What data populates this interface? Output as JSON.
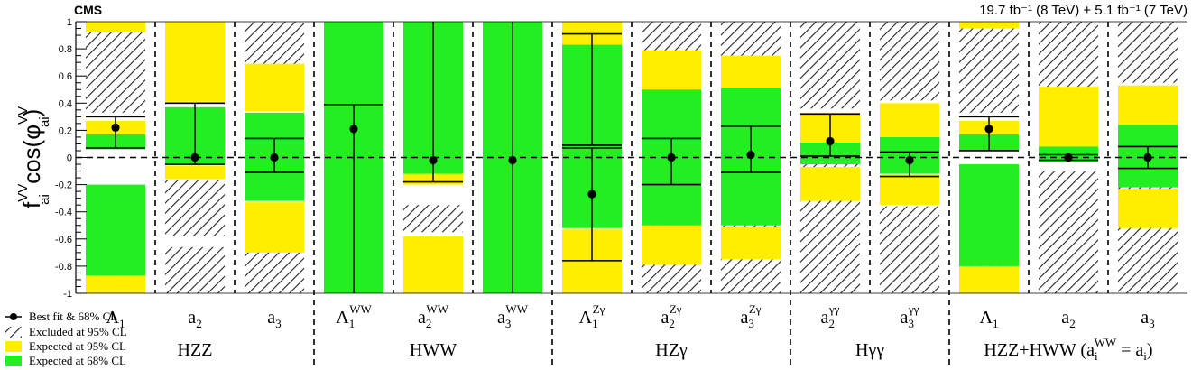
{
  "chart_data": {
    "type": "scatter",
    "experiment": "CMS",
    "lumi_label": "19.7 fb⁻¹ (8 TeV) + 5.1 fb⁻¹ (7 TeV)",
    "ylabel": "fᵥᵥ cos(φᵥᵥ)",
    "ylabel_parts": {
      "f": "f",
      "f_sup": "VV",
      "f_sub": "ai",
      "cos": "cos(φ",
      "phi_sup": "VV",
      "phi_sub": "ai",
      "close": ")"
    },
    "ylim": [
      -1,
      1
    ],
    "yticks": [
      "-1",
      "-0.8",
      "-0.6",
      "-0.4",
      "-0.2",
      "0",
      "0.2",
      "0.4",
      "0.6",
      "0.8",
      "1"
    ],
    "grid": false,
    "legend_position": "bottom-left",
    "legend": {
      "best_fit": "Best fit & 68% CL",
      "excluded": "Excluded at 95% CL",
      "expected95": "Expected at 95% CL",
      "expected68": "Expected at 68% CL"
    },
    "colors": {
      "expected95": "#ffee00",
      "expected68": "#22ee22",
      "hatch": "#222222",
      "marker": "#000000"
    },
    "groups": [
      {
        "label": "HZZ",
        "span": [
          0,
          3
        ]
      },
      {
        "label": "HWW",
        "span": [
          3,
          6
        ]
      },
      {
        "label": "HZγ",
        "span": [
          6,
          9
        ]
      },
      {
        "label": "Hγγ",
        "span": [
          9,
          11
        ]
      },
      {
        "label": "HZZ+HWW",
        "span": [
          11,
          14
        ],
        "suffix": {
          "open": "(a",
          "sub": "i",
          "sup": "WW",
          "mid": " = a",
          "sub2": "i",
          "close": ")"
        }
      }
    ],
    "categories": [
      {
        "base": "Λ",
        "sub": "1",
        "sup": "",
        "best": 0.22,
        "cl68": [
          [
            0.07,
            0.3
          ]
        ],
        "exp95": [
          [
            0.92,
            1.0
          ],
          [
            0.17,
            0.27
          ],
          [
            -0.87,
            -1.0
          ]
        ],
        "exp68": [
          [
            0.06,
            0.17
          ],
          [
            -0.2,
            -0.87
          ]
        ],
        "excluded": [
          [
            0.33,
            1.0
          ],
          [
            -0.25,
            -1.0
          ]
        ]
      },
      {
        "base": "a",
        "sub": "2",
        "sup": "",
        "best": 0.0,
        "cl68": [
          [
            -0.05,
            0.4
          ]
        ],
        "exp95": [
          [
            0.41,
            1.0
          ],
          [
            -0.06,
            -0.16
          ]
        ],
        "exp68": [
          [
            -0.05,
            0.37
          ]
        ],
        "excluded": [
          [
            -0.17,
            -0.58
          ],
          [
            -0.66,
            -1.0
          ]
        ]
      },
      {
        "base": "a",
        "sub": "3",
        "sup": "",
        "best": 0.0,
        "cl68": [
          [
            -0.11,
            0.14
          ]
        ],
        "exp95": [
          [
            0.34,
            0.69
          ],
          [
            -0.33,
            -0.7
          ]
        ],
        "exp68": [
          [
            -0.32,
            0.33
          ]
        ],
        "excluded": [
          [
            0.42,
            1.0
          ],
          [
            -0.4,
            -1.0
          ]
        ]
      },
      {
        "base": "Λ",
        "sub": "1",
        "sup": "WW",
        "best": 0.21,
        "cl68": [
          [
            -1.0,
            0.39
          ]
        ],
        "exp95": [
          [
            0.5,
            1.0
          ],
          [
            0.38,
            0.4
          ]
        ],
        "exp68": [
          [
            0.35,
            1.0
          ],
          [
            -1.0,
            0.37
          ]
        ],
        "excluded": []
      },
      {
        "base": "a",
        "sub": "2",
        "sup": "WW",
        "best": -0.02,
        "cl68": [
          [
            -0.18,
            1.0
          ]
        ],
        "exp95": [
          [
            -0.12,
            -0.2
          ],
          [
            -0.58,
            -1.0
          ]
        ],
        "exp68": [
          [
            -0.12,
            1.0
          ]
        ],
        "excluded": [
          [
            -0.35,
            -0.55
          ]
        ]
      },
      {
        "base": "a",
        "sub": "3",
        "sup": "WW",
        "best": -0.02,
        "cl68": [
          [
            -1.0,
            1.0
          ]
        ],
        "exp95": [],
        "exp68": [
          [
            -1.0,
            1.0
          ]
        ],
        "excluded": []
      },
      {
        "base": "Λ",
        "sub": "1",
        "sup": "Zγ",
        "best": -0.27,
        "cl68": [
          [
            -0.76,
            0.07
          ],
          [
            0.09,
            0.91
          ]
        ],
        "exp95": [
          [
            0.83,
            1.0
          ],
          [
            -0.53,
            -1.0
          ]
        ],
        "exp68": [
          [
            -0.52,
            0.83
          ]
        ],
        "excluded": []
      },
      {
        "base": "a",
        "sub": "2",
        "sup": "Zγ",
        "best": 0.0,
        "cl68": [
          [
            -0.2,
            0.14
          ]
        ],
        "exp95": [
          [
            0.5,
            0.79
          ],
          [
            -0.5,
            -0.79
          ]
        ],
        "exp68": [
          [
            -0.5,
            0.5
          ]
        ],
        "excluded": [
          [
            0.52,
            1.0
          ],
          [
            -0.5,
            -1.0
          ]
        ]
      },
      {
        "base": "a",
        "sub": "3",
        "sup": "Zγ",
        "best": 0.02,
        "cl68": [
          [
            -0.11,
            0.23
          ]
        ],
        "exp95": [
          [
            0.51,
            0.75
          ],
          [
            -0.51,
            -0.75
          ]
        ],
        "exp68": [
          [
            -0.5,
            0.51
          ]
        ],
        "excluded": [
          [
            0.53,
            1.0
          ],
          [
            -0.41,
            -1.0
          ]
        ]
      },
      {
        "base": "a",
        "sub": "2",
        "sup": "γγ",
        "best": 0.12,
        "cl68": [
          [
            0.01,
            0.32
          ]
        ],
        "exp95": [
          [
            0.11,
            0.33
          ],
          [
            -0.07,
            -0.32
          ]
        ],
        "exp68": [
          [
            -0.05,
            0.11
          ]
        ],
        "excluded": [
          [
            0.36,
            1.0
          ],
          [
            -0.02,
            -1.0
          ]
        ]
      },
      {
        "base": "a",
        "sub": "3",
        "sup": "γγ",
        "best": -0.02,
        "cl68": [
          [
            -0.14,
            0.04
          ]
        ],
        "exp95": [
          [
            0.15,
            0.4
          ],
          [
            -0.13,
            -0.35
          ]
        ],
        "exp68": [
          [
            -0.12,
            0.15
          ]
        ],
        "excluded": [
          [
            0.42,
            1.0
          ],
          [
            -0.36,
            -1.0
          ]
        ]
      },
      {
        "base": "Λ",
        "sub": "1",
        "sup": "",
        "best": 0.21,
        "cl68": [
          [
            0.05,
            0.3
          ]
        ],
        "exp95": [
          [
            0.95,
            1.0
          ],
          [
            0.17,
            0.27
          ],
          [
            -0.8,
            -1.0
          ]
        ],
        "exp68": [
          [
            0.05,
            0.17
          ],
          [
            -0.05,
            -0.8
          ]
        ],
        "excluded": [
          [
            0.33,
            1.0
          ],
          [
            -0.42,
            -1.0
          ]
        ]
      },
      {
        "base": "a",
        "sub": "2",
        "sup": "",
        "best": 0.0,
        "cl68": [
          [
            -0.02,
            0.02
          ]
        ],
        "exp95": [
          [
            0.08,
            0.52
          ]
        ],
        "exp68": [
          [
            -0.03,
            0.08
          ]
        ],
        "excluded": [
          [
            0.52,
            1.0
          ],
          [
            -0.1,
            -1.0
          ]
        ]
      },
      {
        "base": "a",
        "sub": "3",
        "sup": "",
        "best": 0.0,
        "cl68": [
          [
            -0.08,
            0.08
          ]
        ],
        "exp95": [
          [
            0.24,
            0.53
          ],
          [
            -0.23,
            -0.52
          ]
        ],
        "exp68": [
          [
            -0.22,
            0.24
          ]
        ],
        "excluded": [
          [
            0.55,
            1.0
          ],
          [
            -0.18,
            -1.0
          ]
        ]
      }
    ]
  }
}
